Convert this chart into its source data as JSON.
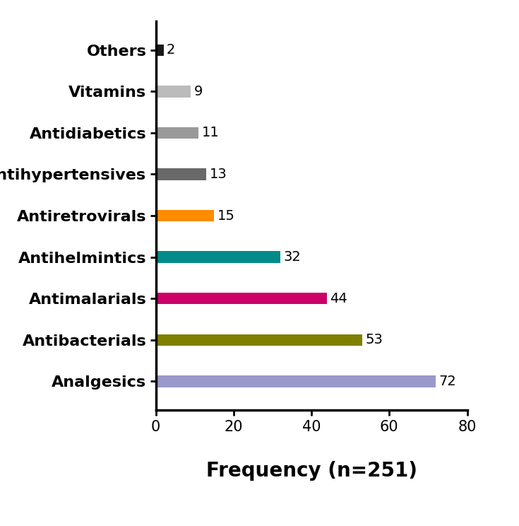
{
  "categories": [
    "Analgesics",
    "Antibacterials",
    "Antimalarials",
    "Antihelmintics",
    "Antiretrovirals",
    "Antihypertensives",
    "Antidiabetics",
    "Vitamins",
    "Others"
  ],
  "values": [
    72,
    53,
    44,
    32,
    15,
    13,
    11,
    9,
    2
  ],
  "colors": [
    "#9999CC",
    "#808000",
    "#CC0066",
    "#008B8B",
    "#FF8C00",
    "#696969",
    "#999999",
    "#BBBBBB",
    "#1a1a1a"
  ],
  "xlabel": "Frequency (n=251)",
  "xlim": [
    0,
    80
  ],
  "xticks": [
    0,
    20,
    40,
    60,
    80
  ],
  "bar_height": 0.28,
  "label_fontsize": 16,
  "tick_fontsize": 15,
  "xlabel_fontsize": 20,
  "value_fontsize": 14,
  "background_color": "#ffffff",
  "spine_linewidth": 2.5
}
